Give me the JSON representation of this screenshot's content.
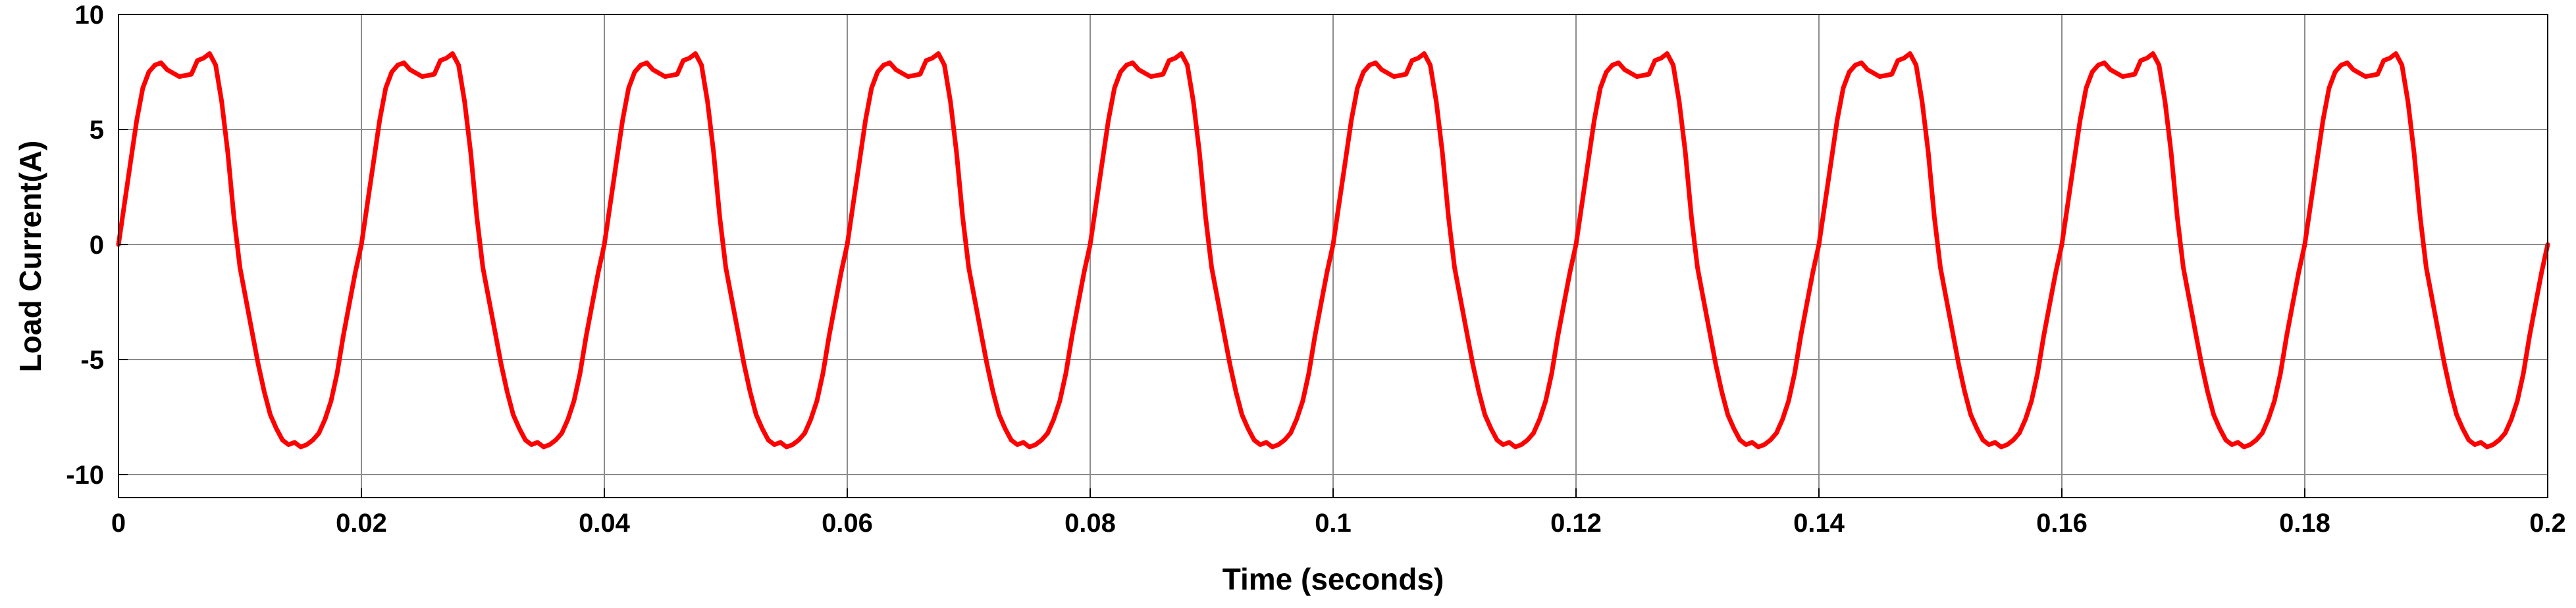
{
  "chart_data": {
    "type": "line",
    "title": "",
    "xlabel": "Time (seconds)",
    "ylabel": "Load Current(A)",
    "xlim": [
      0,
      0.2
    ],
    "ylim": [
      -11,
      10
    ],
    "grid": true,
    "legend": "none",
    "x_ticks": [
      0,
      0.02,
      0.04,
      0.06,
      0.08,
      0.1,
      0.12,
      0.14,
      0.16,
      0.18,
      0.2
    ],
    "x_tick_labels": [
      "0",
      "0.02",
      "0.04",
      "0.06",
      "0.08",
      "0.1",
      "0.12",
      "0.14",
      "0.16",
      "0.18",
      "0.2"
    ],
    "y_ticks": [
      10,
      5,
      0,
      -5,
      -10
    ],
    "y_tick_labels": [
      "10",
      "5",
      "0",
      "-5",
      "-10"
    ],
    "series": [
      {
        "color": "#ff0000",
        "period": 0.02,
        "note_repeating": true,
        "cycle_t": [
          0,
          0.0005,
          0.001,
          0.0015,
          0.002,
          0.0025,
          0.003,
          0.0035,
          0.004,
          0.005,
          0.006,
          0.0065,
          0.007,
          0.0075,
          0.008,
          0.0085,
          0.009,
          0.0095,
          0.01,
          0.0105,
          0.011,
          0.0115,
          0.012,
          0.0125,
          0.013,
          0.0135,
          0.014,
          0.0145,
          0.015,
          0.0155,
          0.016,
          0.0165,
          0.017,
          0.0175,
          0.018,
          0.0185,
          0.019,
          0.0195,
          0.02
        ],
        "cycle_y": [
          0.0,
          1.8,
          3.6,
          5.4,
          6.8,
          7.5,
          7.8,
          7.9,
          7.6,
          7.3,
          7.4,
          8.0,
          8.1,
          8.3,
          7.8,
          6.2,
          4.0,
          1.2,
          -1.0,
          -2.4,
          -3.8,
          -5.2,
          -6.4,
          -7.4,
          -8.0,
          -8.5,
          -8.7,
          -8.6,
          -8.8,
          -8.7,
          -8.5,
          -8.2,
          -7.6,
          -6.8,
          -5.6,
          -4.0,
          -2.6,
          -1.2,
          0.0
        ]
      }
    ],
    "annotations": []
  }
}
